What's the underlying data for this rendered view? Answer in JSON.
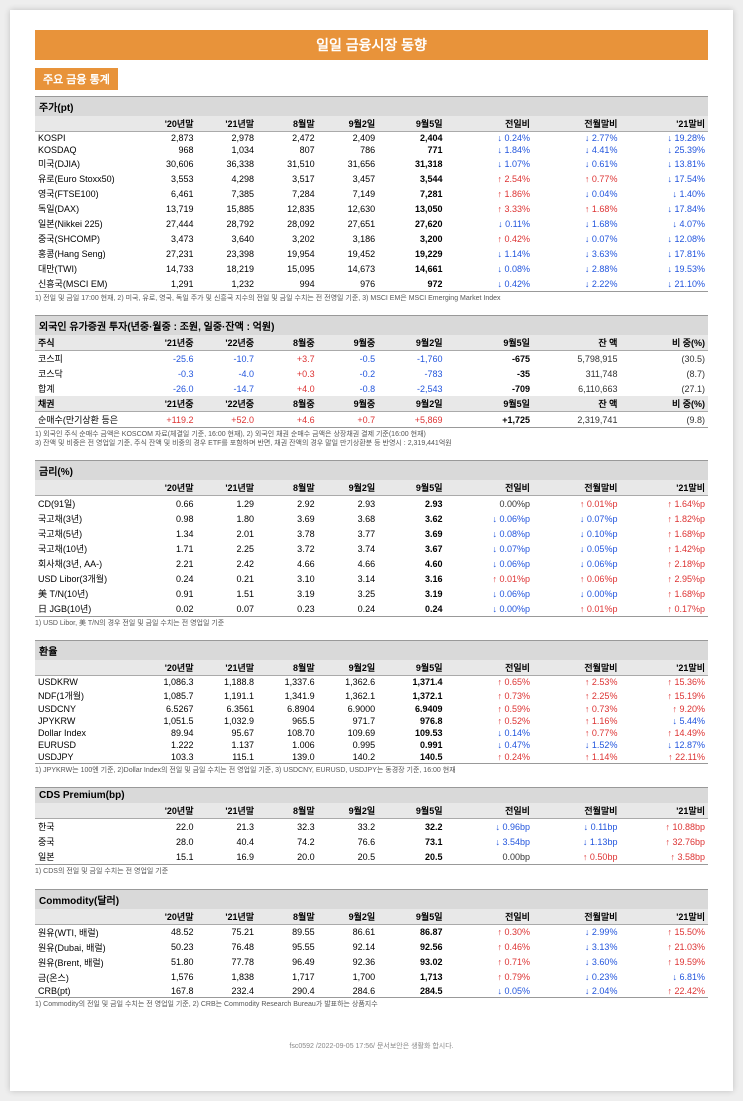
{
  "title": "일일 금융시장 동향",
  "subtitle": "주요 금융 통계",
  "footer": "fsc0592 /2022-09-05  17:56/ 문서보안은 생활화 합시다.",
  "sections": [
    {
      "header": "주가(pt)",
      "cols": [
        "",
        "'20년말",
        "'21년말",
        "8월말",
        "9월2일",
        "9월5일",
        "전일비",
        "전월말비",
        "'21말비"
      ],
      "widths": [
        "15%",
        "9%",
        "9%",
        "9%",
        "9%",
        "10%",
        "13%",
        "13%",
        "13%"
      ],
      "rows": [
        [
          "KOSPI",
          "2,873",
          "2,978",
          "2,472",
          "2,409",
          "2,404",
          "↓ 0.24%",
          "↓ 2.77%",
          "↓ 19.28%"
        ],
        [
          "KOSDAQ",
          "968",
          "1,034",
          "807",
          "786",
          "771",
          "↓ 1.84%",
          "↓ 4.41%",
          "↓ 25.39%"
        ],
        [
          "미국(DJIA)",
          "30,606",
          "36,338",
          "31,510",
          "31,656",
          "31,318",
          "↓ 1.07%",
          "↓ 0.61%",
          "↓ 13.81%"
        ],
        [
          "유로(Euro Stoxx50)",
          "3,553",
          "4,298",
          "3,517",
          "3,457",
          "3,544",
          "↑ 2.54%",
          "↑ 0.77%",
          "↓ 17.54%"
        ],
        [
          "영국(FTSE100)",
          "6,461",
          "7,385",
          "7,284",
          "7,149",
          "7,281",
          "↑ 1.86%",
          "↓ 0.04%",
          "↓ 1.40%"
        ],
        [
          "독일(DAX)",
          "13,719",
          "15,885",
          "12,835",
          "12,630",
          "13,050",
          "↑ 3.33%",
          "↑ 1.68%",
          "↓ 17.84%"
        ],
        [
          "일본(Nikkei 225)",
          "27,444",
          "28,792",
          "28,092",
          "27,651",
          "27,620",
          "↓ 0.11%",
          "↓ 1.68%",
          "↓ 4.07%"
        ],
        [
          "중국(SHCOMP)",
          "3,473",
          "3,640",
          "3,202",
          "3,186",
          "3,200",
          "↑ 0.42%",
          "↓ 0.07%",
          "↓ 12.08%"
        ],
        [
          "홍콩(Hang Seng)",
          "27,231",
          "23,398",
          "19,954",
          "19,452",
          "19,229",
          "↓ 1.14%",
          "↓ 3.63%",
          "↓ 17.81%"
        ],
        [
          "대만(TWI)",
          "14,733",
          "18,219",
          "15,095",
          "14,673",
          "14,661",
          "↓ 0.08%",
          "↓ 2.88%",
          "↓ 19.53%"
        ],
        [
          "신흥국(MSCI EM)",
          "1,291",
          "1,232",
          "994",
          "976",
          "972",
          "↓ 0.42%",
          "↓ 2.22%",
          "↓ 21.10%"
        ]
      ],
      "boldcol": 5,
      "note": "1) 전일 및 금일 17:00 현재,  2) 미국, 유로, 영국, 독일 주가 및 신흥국 지수의 전일 및 금일 수치는 전 전영일 기준,  3) MSCI EM은 MSCI Emerging Market Index"
    },
    {
      "header": "외국인 유가증권 투자(년중·월중 : 조원, 일중·잔액 : 억원)",
      "cols": [
        "주식",
        "'21년중",
        "'22년중",
        "8월중",
        "9월중",
        "9월2일",
        "9월5일",
        "잔 액",
        "비 중(%)"
      ],
      "widths": [
        "15%",
        "9%",
        "9%",
        "9%",
        "9%",
        "10%",
        "13%",
        "13%",
        "13%"
      ],
      "rows": [
        [
          "코스피",
          "-25.6",
          "-10.7",
          "+3.7",
          "-0.5",
          "-1,760",
          "-675",
          "5,798,915",
          "(30.5)"
        ],
        [
          "코스닥",
          "-0.3",
          "-4.0",
          "+0.3",
          "-0.2",
          "-783",
          "-35",
          "311,748",
          "(8.7)"
        ],
        [
          "합계",
          "-26.0",
          "-14.7",
          "+4.0",
          "-0.8",
          "-2,543",
          "-709",
          "6,110,663",
          "(27.1)"
        ]
      ],
      "boldcol": 6,
      "sub": {
        "cols": [
          "채권",
          "'21년중",
          "'22년중",
          "8월중",
          "9월중",
          "9월2일",
          "9월5일",
          "잔 액",
          "비 중(%)"
        ],
        "rows": [
          [
            "순매수(만기상환 등은",
            "+119.2",
            "+52.0",
            "+4.6",
            "+0.7",
            "+5,869",
            "+1,725",
            "2,319,741",
            "(9.8)"
          ]
        ]
      },
      "note": "1) 외국인 주식 순매수 금액은 KOSCOM 자료(체결일 기준, 16:00 현재),  2) 외국인 채권 순매수 금액은 상장채권 결제 기준(16:00 현재)\n3) 잔액 및 비중은 전 영업일 기준, 주식 잔액 및 비중의 경우 ETF를 포함하며 반면, 채권 잔액의 경우 말일 만기상환분 등 반영시  :                                            2,319,441억원"
    },
    {
      "header": "금리(%)",
      "cols": [
        "",
        "'20년말",
        "'21년말",
        "8월말",
        "9월2일",
        "9월5일",
        "전일비",
        "전월말비",
        "'21말비"
      ],
      "widths": [
        "15%",
        "9%",
        "9%",
        "9%",
        "9%",
        "10%",
        "13%",
        "13%",
        "13%"
      ],
      "rows": [
        [
          "CD(91일)",
          "0.66",
          "1.29",
          "2.92",
          "2.93",
          "2.93",
          "0.00%p",
          "↑ 0.01%p",
          "↑ 1.64%p"
        ],
        [
          "국고채(3년)",
          "0.98",
          "1.80",
          "3.69",
          "3.68",
          "3.62",
          "↓ 0.06%p",
          "↓ 0.07%p",
          "↑ 1.82%p"
        ],
        [
          "국고채(5년)",
          "1.34",
          "2.01",
          "3.78",
          "3.77",
          "3.69",
          "↓ 0.08%p",
          "↓ 0.10%p",
          "↑ 1.68%p"
        ],
        [
          "국고채(10년)",
          "1.71",
          "2.25",
          "3.72",
          "3.74",
          "3.67",
          "↓ 0.07%p",
          "↓ 0.05%p",
          "↑ 1.42%p"
        ],
        [
          "회사채(3년, AA-)",
          "2.21",
          "2.42",
          "4.66",
          "4.66",
          "4.60",
          "↓ 0.06%p",
          "↓ 0.06%p",
          "↑ 2.18%p"
        ],
        [
          "USD Libor(3개월)",
          "0.24",
          "0.21",
          "3.10",
          "3.14",
          "3.16",
          "↑ 0.01%p",
          "↑ 0.06%p",
          "↑ 2.95%p"
        ],
        [
          "美 T/N(10년)",
          "0.91",
          "1.51",
          "3.19",
          "3.25",
          "3.19",
          "↓ 0.06%p",
          "↓ 0.00%p",
          "↑ 1.68%p"
        ],
        [
          "日 JGB(10년)",
          "0.02",
          "0.07",
          "0.23",
          "0.24",
          "0.24",
          "↓ 0.00%p",
          "↑ 0.01%p",
          "↑ 0.17%p"
        ]
      ],
      "boldcol": 5,
      "note": "1) USD Libor, 美 T/N의 경우 전일 및 금일 수치는 전 영업일 기준"
    },
    {
      "header": "환율",
      "cols": [
        "",
        "'20년말",
        "'21년말",
        "8월말",
        "9월2일",
        "9월5일",
        "전일비",
        "전월말비",
        "'21말비"
      ],
      "widths": [
        "15%",
        "9%",
        "9%",
        "9%",
        "9%",
        "10%",
        "13%",
        "13%",
        "13%"
      ],
      "rows": [
        [
          "USDKRW",
          "1,086.3",
          "1,188.8",
          "1,337.6",
          "1,362.6",
          "1,371.4",
          "↑ 0.65%",
          "↑ 2.53%",
          "↑ 15.36%"
        ],
        [
          "  NDF(1개월)",
          "1,085.7",
          "1,191.1",
          "1,341.9",
          "1,362.1",
          "1,372.1",
          "↑ 0.73%",
          "↑ 2.25%",
          "↑ 15.19%"
        ],
        [
          "USDCNY",
          "6.5267",
          "6.3561",
          "6.8904",
          "6.9000",
          "6.9409",
          "↑ 0.59%",
          "↑ 0.73%",
          "↑ 9.20%"
        ],
        [
          "JPYKRW",
          "1,051.5",
          "1,032.9",
          "965.5",
          "971.7",
          "976.8",
          "↑ 0.52%",
          "↑ 1.16%",
          "↓ 5.44%"
        ],
        [
          "Dollar Index",
          "89.94",
          "95.67",
          "108.70",
          "109.69",
          "109.53",
          "↓ 0.14%",
          "↑ 0.77%",
          "↑ 14.49%"
        ],
        [
          "EURUSD",
          "1.222",
          "1.137",
          "1.006",
          "0.995",
          "0.991",
          "↓ 0.47%",
          "↓ 1.52%",
          "↓ 12.87%"
        ],
        [
          "USDJPY",
          "103.3",
          "115.1",
          "139.0",
          "140.2",
          "140.5",
          "↑ 0.24%",
          "↑ 1.14%",
          "↑ 22.11%"
        ]
      ],
      "boldcol": 5,
      "note": "1) JPYKRW는 100엔 기준, 2)Dollar Index의 전일 및 금일 수치는 전 영업일 기준, 3) USDCNY, EURUSD, USDJPY는 동경장 기준, 16:00 현재"
    },
    {
      "header": "CDS Premium(bp)",
      "cols": [
        "",
        "'20년말",
        "'21년말",
        "8월말",
        "9월2일",
        "9월5일",
        "전일비",
        "전월말비",
        "'21말비"
      ],
      "widths": [
        "15%",
        "9%",
        "9%",
        "9%",
        "9%",
        "10%",
        "13%",
        "13%",
        "13%"
      ],
      "rows": [
        [
          "한국",
          "22.0",
          "21.3",
          "32.3",
          "33.2",
          "32.2",
          "↓ 0.96bp",
          "↓ 0.11bp",
          "↑ 10.88bp"
        ],
        [
          "중국",
          "28.0",
          "40.4",
          "74.2",
          "76.6",
          "73.1",
          "↓ 3.54bp",
          "↓ 1.13bp",
          "↑ 32.76bp"
        ],
        [
          "일본",
          "15.1",
          "16.9",
          "20.0",
          "20.5",
          "20.5",
          "0.00bp",
          "↑ 0.50bp",
          "↑ 3.58bp"
        ]
      ],
      "boldcol": 5,
      "note": "1) CDS의 전일 및 금일 수치는 전 영업일 기준"
    },
    {
      "header": "Commodity(달러)",
      "cols": [
        "",
        "'20년말",
        "'21년말",
        "8월말",
        "9월2일",
        "9월5일",
        "전일비",
        "전월말비",
        "'21말비"
      ],
      "widths": [
        "15%",
        "9%",
        "9%",
        "9%",
        "9%",
        "10%",
        "13%",
        "13%",
        "13%"
      ],
      "rows": [
        [
          "원유(WTI, 배럴)",
          "48.52",
          "75.21",
          "89.55",
          "86.61",
          "86.87",
          "↑ 0.30%",
          "↓ 2.99%",
          "↑ 15.50%"
        ],
        [
          "원유(Dubai, 배럴)",
          "50.23",
          "76.48",
          "95.55",
          "92.14",
          "92.56",
          "↑ 0.46%",
          "↓ 3.13%",
          "↑ 21.03%"
        ],
        [
          "원유(Brent, 배럴)",
          "51.80",
          "77.78",
          "96.49",
          "92.36",
          "93.02",
          "↑ 0.71%",
          "↓ 3.60%",
          "↑ 19.59%"
        ],
        [
          "금(온스)",
          "1,576",
          "1,838",
          "1,717",
          "1,700",
          "1,713",
          "↑ 0.79%",
          "↓ 0.23%",
          "↓ 6.81%"
        ],
        [
          "CRB(pt)",
          "167.8",
          "232.4",
          "290.4",
          "284.6",
          "284.5",
          "↓ 0.05%",
          "↓ 2.04%",
          "↑ 22.42%"
        ]
      ],
      "boldcol": 5,
      "note": "1) Commodity의 전일 및 금일 수치는 전 영업일 기준, 2) CRB는 Commodity Research Bureau가 발표하는 상품지수"
    }
  ]
}
